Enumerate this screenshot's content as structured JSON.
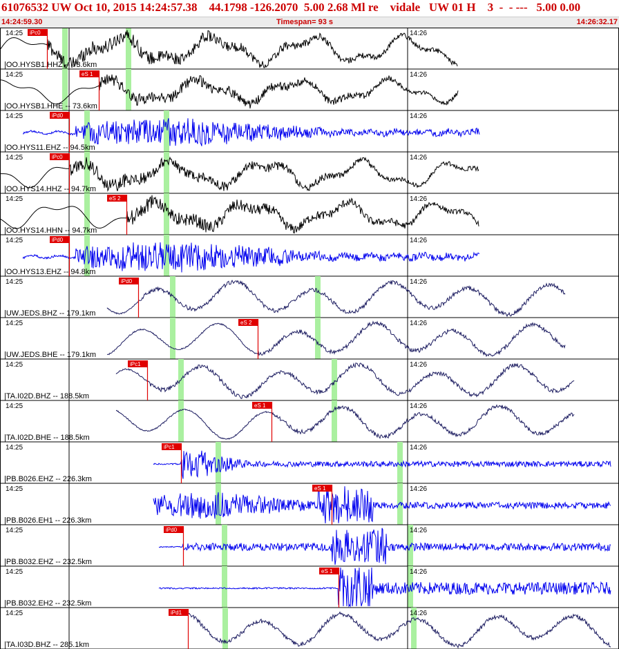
{
  "header": {
    "title": "61076532 UW Oct 10, 2015 14:24:57.38    44.1798 -126.2070  5.00 2.68 Ml re    vidale   UW 01 H    3  -  - ---   5.00 0.00",
    "start_time": "14:24:59.30",
    "timespan": "Timespan=  93 s",
    "end_time": "14:26:32.17"
  },
  "colors": {
    "header_text": "#cc0000",
    "pick": "#e00000",
    "gap": "#aaf0a0",
    "trace_black": "#000000",
    "trace_blue": "#0000ee",
    "trace_navy": "#1c1c60"
  },
  "time_marks": {
    "left": "14:25",
    "right": "14:26"
  },
  "channels": [
    {
      "label": "|OO.HYSB1.HHZ -- 73.6km",
      "pick": "iPc0",
      "color": "black"
    },
    {
      "label": "|OO.HYSB1.HHE -- 73.6km",
      "pick": "eS 1",
      "color": "black"
    },
    {
      "label": "|OO.HYS11.EHZ -- 94.5km",
      "pick": "iPd0",
      "color": "blue"
    },
    {
      "label": "|OO.HYS14.HHZ -- 94.7km",
      "pick": "iPc0",
      "color": "black"
    },
    {
      "label": "|OO.HYS14.HHN -- 94.7km",
      "pick": "eS 2",
      "color": "black"
    },
    {
      "label": "|OO.HYS13.EHZ -- 94.8km",
      "pick": "iPd0",
      "color": "blue"
    },
    {
      "label": "|UW.JEDS.BHZ -- 179.1km",
      "pick": "iPd0",
      "color": "navy"
    },
    {
      "label": "|UW.JEDS.BHE -- 179.1km",
      "pick": "eS 2",
      "color": "navy"
    },
    {
      "label": "|TA.I02D.BHZ -- 188.5km",
      "pick": "iPc1",
      "color": "navy"
    },
    {
      "label": "|TA.I02D.BHE -- 188.5km",
      "pick": "eS 1",
      "color": "navy"
    },
    {
      "label": "|PB.B026.EHZ -- 226.3km",
      "pick": "iPc1",
      "color": "blue"
    },
    {
      "label": "|PB.B026.EH1 -- 226.3km",
      "pick": "eS 1",
      "color": "blue"
    },
    {
      "label": "|PB.B032.EHZ -- 232.5km",
      "pick": "iPd0",
      "color": "blue"
    },
    {
      "label": "|PB.B032.EH2 -- 232.5km",
      "pick": "eS 1",
      "color": "blue"
    },
    {
      "label": "|TA.I03D.BHZ -- 285.1km",
      "pick": "iPd1",
      "color": "navy"
    }
  ]
}
